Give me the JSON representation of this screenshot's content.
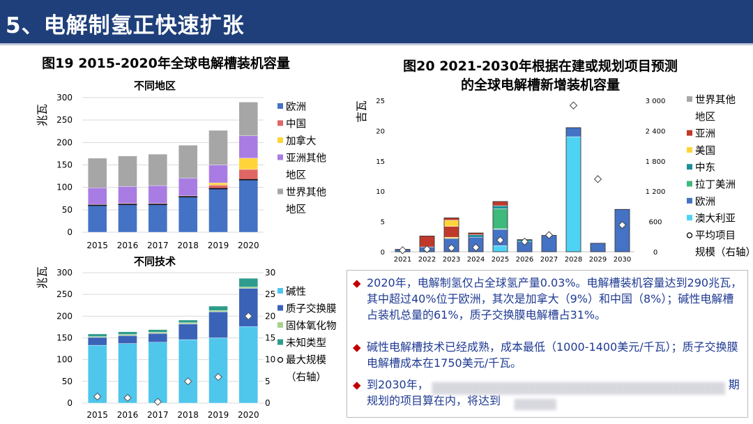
{
  "header": {
    "title": "5、电解制氢正快速扩张"
  },
  "fig19": {
    "title": "图19 2015-2020年全球电解槽装机容量",
    "region_chart": {
      "subtitle": "不同地区",
      "ylabel": "兆瓦",
      "legend": [
        "欧洲",
        "中国",
        "加拿大",
        "亚洲其他",
        "地区",
        "世界其他",
        "地区"
      ]
    },
    "tech_chart": {
      "subtitle": "不同技术",
      "ylabel": "兆瓦",
      "legend": [
        "碱性",
        "质子交换膜",
        "固体氧化物",
        "未知类型",
        "最大规模",
        "（右轴）"
      ]
    }
  },
  "fig20": {
    "title_line1": "图20 2021-2030年根据在建或规划项目预测",
    "title_line2": "的全球电解槽新增装机容量",
    "ylabel": "吉瓦",
    "legend": [
      "世界其他",
      "地区",
      "亚洲",
      "美国",
      "中东",
      "拉丁美洲",
      "欧洲",
      "澳大利亚",
      "平均项目",
      "规模（右轴）"
    ]
  },
  "colors": {
    "europe": "#4472c4",
    "china": "#e06666",
    "canada": "#ffd43b",
    "asia_other": "#a87ce3",
    "world_other": "#a6a6a6",
    "alkaline": "#4fc6ec",
    "pem": "#3a63b8",
    "soec": "#a9d18e",
    "unknown": "#2e9c8c",
    "asia": "#c0392b",
    "usa": "#ffd43b",
    "mideast": "#1a8f9c",
    "latam": "#3fb97c",
    "australia": "#4fd3f4"
  },
  "textbox": {
    "p1": "2020年，电解制氢仅占全球氢产量0.03%。电解槽装机容量达到290兆瓦，其中超过40%位于欧洲，其次是加拿大（9%）和中国（8%）；碱性电解槽占装机总量的61%，质子交换膜电解槽占31%。",
    "p2": "碱性电解槽技术已经成熟，成本最低（1000-1400美元/千瓦）；质子交换膜电解槽成本在1750美元/千瓦。",
    "p3_a": "到2030年，",
    "p3_b": "规划的项目算在内，将达到",
    "p3_c": "期"
  },
  "chart_data": [
    {
      "type": "bar",
      "title": "不同地区",
      "ylabel": "兆瓦",
      "categories": [
        "2015",
        "2016",
        "2017",
        "2018",
        "2019",
        "2020"
      ],
      "ylim": [
        0,
        300
      ],
      "yticks": [
        0,
        50,
        100,
        150,
        200,
        250,
        300
      ],
      "series": [
        {
          "name": "欧洲",
          "values": [
            60,
            62,
            62,
            79,
            97,
            117
          ]
        },
        {
          "name": "中国",
          "values": [
            2,
            2,
            2,
            2,
            8,
            23
          ]
        },
        {
          "name": "加拿大",
          "values": [
            0,
            0,
            0,
            0,
            5,
            25
          ]
        },
        {
          "name": "亚洲其他地区",
          "values": [
            37,
            38,
            40,
            40,
            40,
            50
          ]
        },
        {
          "name": "世界其他地区",
          "values": [
            66,
            68,
            70,
            73,
            77,
            75
          ]
        }
      ],
      "legend_position": "right"
    },
    {
      "type": "bar",
      "title": "不同技术",
      "ylabel": "兆瓦",
      "categories": [
        "2015",
        "2016",
        "2017",
        "2018",
        "2019",
        "2020"
      ],
      "ylim": [
        0,
        300
      ],
      "yticks": [
        0,
        50,
        100,
        150,
        200,
        250,
        300
      ],
      "y2lim": [
        0,
        30
      ],
      "y2ticks": [
        0,
        5,
        10,
        15,
        20,
        25,
        30
      ],
      "series": [
        {
          "name": "碱性",
          "values": [
            133,
            137,
            140,
            146,
            150,
            176
          ]
        },
        {
          "name": "质子交换膜",
          "values": [
            18,
            18,
            20,
            36,
            60,
            88
          ]
        },
        {
          "name": "固体氧化物",
          "values": [
            2,
            3,
            3,
            3,
            3,
            3
          ]
        },
        {
          "name": "未知类型",
          "values": [
            6,
            6,
            6,
            6,
            10,
            20
          ]
        }
      ],
      "y2_series": {
        "name": "最大规模（右轴）",
        "values": [
          1.5,
          1.2,
          0.3,
          5,
          6,
          20
        ]
      },
      "legend_position": "right"
    },
    {
      "type": "bar",
      "title": "图20 2021-2030年根据在建或规划项目预测的全球电解槽新增装机容量",
      "ylabel": "吉瓦",
      "categories": [
        "2021",
        "2022",
        "2023",
        "2024",
        "2025",
        "2026",
        "2027",
        "2028",
        "2029",
        "2030"
      ],
      "ylim": [
        0,
        25
      ],
      "yticks": [
        0,
        5,
        10,
        15,
        20,
        25
      ],
      "y2lim": [
        0,
        3000
      ],
      "y2ticks": [
        "0",
        "600",
        "1 200",
        "1 800",
        "2 400",
        "3 000"
      ],
      "series": [
        {
          "name": "澳大利亚",
          "values": [
            0,
            0,
            0,
            0,
            1,
            0,
            0,
            19,
            0,
            0
          ]
        },
        {
          "name": "欧洲",
          "values": [
            0.4,
            0.8,
            2.2,
            2.4,
            2.7,
            1.7,
            2.7,
            1.5,
            1.4,
            7
          ]
        },
        {
          "name": "拉丁美洲",
          "values": [
            0,
            0,
            0,
            0,
            0.1,
            0,
            0,
            0,
            0,
            0
          ]
        },
        {
          "name": "中东",
          "values": [
            0,
            0,
            0,
            0.4,
            0,
            0,
            0,
            0,
            0,
            0
          ]
        },
        {
          "name": "美国",
          "values": [
            0,
            0,
            0.2,
            0,
            0,
            0,
            0,
            0,
            0,
            0
          ]
        },
        {
          "name": "亚洲",
          "values": [
            0,
            1.8,
            1.8,
            0,
            0,
            0,
            0,
            0,
            0,
            0
          ]
        },
        {
          "name": "世界其他地区",
          "values": [
            0,
            0,
            0,
            0,
            0,
            0,
            0,
            0,
            0,
            0
          ]
        }
      ],
      "extra_segments": {
        "2023": [
          {
            "name": "美国",
            "value": 1.0
          },
          {
            "name": "亚洲",
            "value": 0.4
          }
        ],
        "2024": [
          {
            "name": "亚洲",
            "value": 0.3
          }
        ],
        "2025": [
          {
            "name": "拉丁美洲",
            "value": 3.3
          },
          {
            "name": "中东",
            "value": 0.5
          },
          {
            "name": "亚洲",
            "value": 0.7
          }
        ],
        "2026": [
          {
            "name": "中东",
            "value": 0.3
          }
        ]
      },
      "y2_series": {
        "name": "平均项目规模（右轴）",
        "values": [
          30,
          50,
          75,
          85,
          230,
          200,
          330,
          2900,
          1440,
          530
        ]
      },
      "legend_position": "right"
    }
  ]
}
